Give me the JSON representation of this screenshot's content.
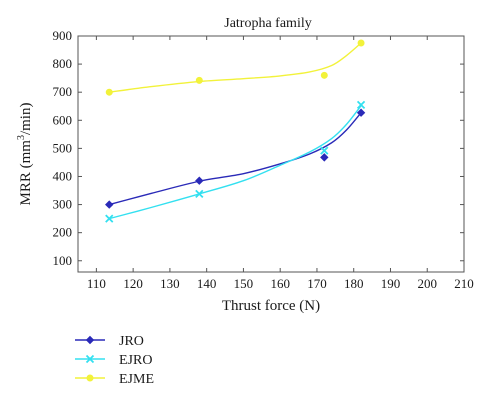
{
  "chart_data": {
    "type": "line",
    "title": "Jatropha family",
    "xlabel": "Thrust force (N)",
    "ylabel_prefix": "MRR (mm",
    "ylabel_sup": "3",
    "ylabel_suffix": "/min)",
    "xlim": [
      105,
      210
    ],
    "ylim": [
      60,
      900
    ],
    "xticks": [
      110,
      120,
      130,
      140,
      150,
      160,
      170,
      180,
      190,
      200,
      210
    ],
    "yticks": [
      100,
      200,
      300,
      400,
      500,
      600,
      700,
      800,
      900
    ],
    "grid": false,
    "legend_position": "bottom-left, below plot",
    "series": [
      {
        "name": "JRO",
        "color": "#2a2ab8",
        "marker": "diamond",
        "points": [
          [
            113.5,
            300
          ],
          [
            138,
            385
          ],
          [
            172,
            468
          ],
          [
            182,
            627
          ]
        ],
        "curve": [
          [
            113.5,
            300
          ],
          [
            125,
            340
          ],
          [
            138,
            383
          ],
          [
            150,
            410
          ],
          [
            160,
            445
          ],
          [
            168,
            480
          ],
          [
            174,
            520
          ],
          [
            178,
            565
          ],
          [
            182,
            627
          ]
        ]
      },
      {
        "name": "EJRO",
        "color": "#33e0f0",
        "marker": "x",
        "points": [
          [
            113.5,
            250
          ],
          [
            138,
            338
          ],
          [
            172,
            492
          ],
          [
            182,
            655
          ]
        ],
        "curve": [
          [
            113.5,
            250
          ],
          [
            125,
            290
          ],
          [
            138,
            338
          ],
          [
            150,
            385
          ],
          [
            160,
            440
          ],
          [
            168,
            487
          ],
          [
            174,
            535
          ],
          [
            178,
            585
          ],
          [
            182,
            652
          ]
        ]
      },
      {
        "name": "EJME",
        "color": "#f2f23a",
        "marker": "circle",
        "points": [
          [
            113.5,
            700
          ],
          [
            138,
            742
          ],
          [
            172,
            760
          ],
          [
            182,
            875
          ]
        ],
        "curve": [
          [
            113.5,
            700
          ],
          [
            125,
            720
          ],
          [
            138,
            738
          ],
          [
            150,
            748
          ],
          [
            160,
            758
          ],
          [
            168,
            772
          ],
          [
            174,
            795
          ],
          [
            178,
            830
          ],
          [
            182,
            875
          ]
        ]
      }
    ]
  }
}
